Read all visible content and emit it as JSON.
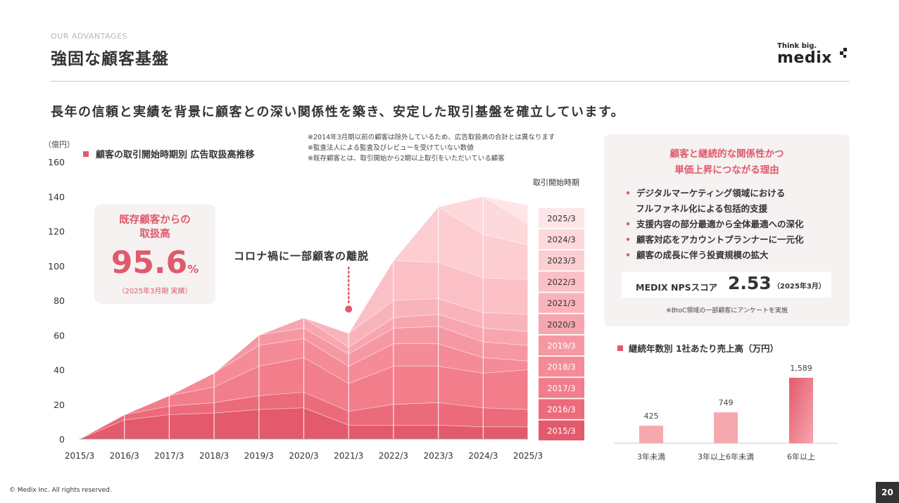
{
  "header": {
    "eyebrow": "OUR ADVANTAGES",
    "title": "強固な顧客基盤",
    "logo_tagline": "Think big.",
    "logo_word": "medix"
  },
  "headline": "長年の信頼と実績を背景に顧客との深い関係性を築き、安定した取引基盤を確立しています。",
  "notes": [
    "※2014年3月期以前の顧客は除外しているため、広告取扱高の合計とは異なります",
    "※監査法人による監査及びレビューを受けていない数値",
    "※既存顧客とは、取引開始から2期以上取引をいただいている顧客"
  ],
  "colors": {
    "accent": "#e05a6e",
    "cohorts": [
      "#e35a6c",
      "#ec6b7b",
      "#f27d8b",
      "#f48b97",
      "#f598a3",
      "#f7a6af",
      "#f9b4bb",
      "#fbc0c6",
      "#fccdd1",
      "#fdd9dc",
      "#fee5e8"
    ]
  },
  "chart_data": [
    {
      "type": "area",
      "stacked": true,
      "title": "顧客の取引開始時期別 広告取扱高推移",
      "ylabel": "（億円）",
      "xlabel": "",
      "ylim": [
        0,
        160
      ],
      "yticks": [
        0,
        20,
        40,
        60,
        80,
        100,
        120,
        140,
        160
      ],
      "grid": false,
      "legend_title": "取引開始時期",
      "legend_position": "right",
      "x": [
        "2015/3",
        "2016/3",
        "2017/3",
        "2018/3",
        "2019/3",
        "2020/3",
        "2021/3",
        "2022/3",
        "2023/3",
        "2024/3",
        "2025/3"
      ],
      "series": [
        {
          "name": "2015/3",
          "values": [
            0,
            11,
            14,
            15,
            17,
            18,
            8,
            8,
            8,
            7,
            7
          ]
        },
        {
          "name": "2016/3",
          "values": [
            0,
            3,
            5,
            6,
            8,
            9,
            8,
            12,
            13,
            11,
            10
          ]
        },
        {
          "name": "2017/3",
          "values": [
            0,
            0,
            6,
            9,
            17,
            20,
            16,
            22,
            21,
            20,
            23
          ]
        },
        {
          "name": "2018/3",
          "values": [
            0,
            0,
            0,
            8,
            12,
            11,
            10,
            13,
            13,
            9,
            5
          ]
        },
        {
          "name": "2019/3",
          "values": [
            0,
            0,
            0,
            0,
            6,
            6,
            7,
            9,
            10,
            9,
            9
          ]
        },
        {
          "name": "2020/3",
          "values": [
            0,
            0,
            0,
            0,
            0,
            6,
            4,
            6,
            7,
            8,
            8
          ]
        },
        {
          "name": "2021/3",
          "values": [
            0,
            0,
            0,
            0,
            0,
            0,
            8,
            10,
            9,
            9,
            10
          ]
        },
        {
          "name": "2022/3",
          "values": [
            0,
            0,
            0,
            0,
            0,
            0,
            0,
            23,
            21,
            20,
            20
          ]
        },
        {
          "name": "2023/3",
          "values": [
            0,
            0,
            0,
            0,
            0,
            0,
            0,
            0,
            32,
            25,
            20
          ]
        },
        {
          "name": "2024/3",
          "values": [
            0,
            0,
            0,
            0,
            0,
            0,
            0,
            0,
            0,
            22,
            12
          ]
        },
        {
          "name": "2025/3",
          "values": [
            0,
            0,
            0,
            0,
            0,
            0,
            0,
            0,
            0,
            0,
            11
          ]
        }
      ],
      "annotations": [
        {
          "text": "コロナ禍に一部顧客の離脱",
          "x": "2021/3",
          "y": 75
        }
      ]
    },
    {
      "type": "bar",
      "title": "継続年数別 1社あたり売上高（万円）",
      "categories": [
        "3年未満",
        "3年以上6年未満",
        "6年以上"
      ],
      "values": [
        425,
        749,
        1589
      ],
      "value_labels": [
        "425",
        "749",
        "1,589"
      ],
      "ylim": [
        0,
        1800
      ]
    }
  ],
  "stat": {
    "label_line1": "既存顧客からの",
    "label_line2": "取扱高",
    "value": "95.6",
    "unit": "%",
    "sub": "（2025年3月期 実績）"
  },
  "panel": {
    "title_line1": "顧客と継続的な関係性かつ",
    "title_line2": "単価上昇につながる理由",
    "reasons": [
      {
        "line1": "デジタルマーケティング領域における",
        "line2": "フルファネル化による包括的支援"
      },
      {
        "line1": "支援内容の部分最適から全体最適への深化",
        "line2": ""
      },
      {
        "line1": "顧客対応をアカウントプランナーに一元化",
        "line2": ""
      },
      {
        "line1": "顧客の成長に伴う投資規模の拡大",
        "line2": ""
      }
    ],
    "nps_label": "MEDIX NPSスコア",
    "nps_value": "2.53",
    "nps_date": "（2025年3月）",
    "nps_note": "※BtoC領域の一部顧客にアンケートを実施"
  },
  "footer": {
    "copyright": "© Medix Inc. All rights reserved.",
    "page_number": "20"
  }
}
